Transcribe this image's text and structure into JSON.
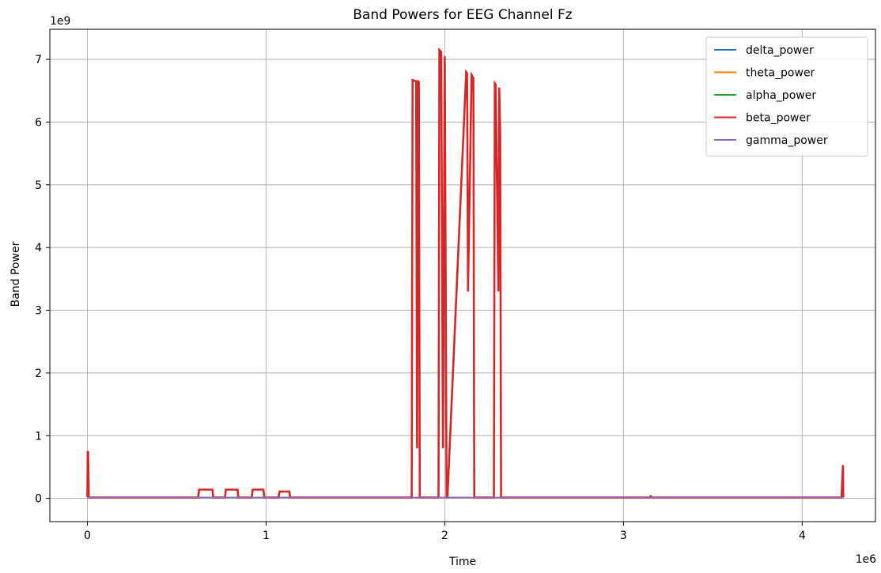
{
  "chart_data": {
    "type": "line",
    "title": "Band Powers for EEG Channel Fz",
    "xlabel": "Time",
    "ylabel": "Band Power",
    "x_offset_label": "1e6",
    "y_offset_label": "1e9",
    "xlim": [
      -210000,
      4410000
    ],
    "ylim": [
      -370000000,
      7480000000
    ],
    "x_ticks": [
      0,
      1000000,
      2000000,
      3000000,
      4000000
    ],
    "x_tick_labels": [
      "0",
      "1",
      "2",
      "3",
      "4"
    ],
    "y_ticks": [
      0,
      1000000000,
      2000000000,
      3000000000,
      4000000000,
      5000000000,
      6000000000,
      7000000000
    ],
    "y_tick_labels": [
      "0",
      "1",
      "2",
      "3",
      "4",
      "5",
      "6",
      "7"
    ],
    "grid": true,
    "legend_position": "top-right",
    "series": [
      {
        "name": "delta_power",
        "color": "#1f77b4",
        "x": [
          0,
          4230000
        ],
        "y": [
          15000000,
          15000000
        ]
      },
      {
        "name": "theta_power",
        "color": "#ff7f0e",
        "x": [
          0,
          4230000
        ],
        "y": [
          15000000,
          15000000
        ]
      },
      {
        "name": "alpha_power",
        "color": "#2ca02c",
        "x": [
          0,
          4230000
        ],
        "y": [
          15000000,
          15000000
        ]
      },
      {
        "name": "beta_power",
        "color": "#d62728",
        "x": [
          0,
          2000,
          4000,
          8000,
          620000,
          625000,
          700000,
          705000,
          770000,
          775000,
          840000,
          845000,
          920000,
          925000,
          985000,
          990000,
          1070000,
          1075000,
          1130000,
          1135000,
          1815000,
          1820000,
          1840000,
          1845000,
          1850000,
          1855000,
          1860000,
          1870000,
          1965000,
          1970000,
          1980000,
          1990000,
          2000000,
          2010000,
          2015000,
          2120000,
          2125000,
          2130000,
          2150000,
          2160000,
          2165000,
          2170000,
          2275000,
          2280000,
          2285000,
          2300000,
          2305000,
          2310000,
          2315000,
          3150000,
          3152000,
          3155000,
          4220000,
          4228000,
          4230000
        ],
        "y": [
          15000000,
          740000000,
          740000000,
          15000000,
          15000000,
          140000000,
          140000000,
          15000000,
          15000000,
          140000000,
          140000000,
          15000000,
          15000000,
          140000000,
          140000000,
          15000000,
          15000000,
          110000000,
          110000000,
          15000000,
          15000000,
          6670000000,
          6650000000,
          800000000,
          6650000000,
          6640000000,
          15000000,
          15000000,
          15000000,
          7150000000,
          7120000000,
          800000000,
          7050000000,
          15000000,
          15000000,
          6800000000,
          6780000000,
          3300000000,
          6750000000,
          6700000000,
          15000000,
          15000000,
          15000000,
          6620000000,
          6600000000,
          3300000000,
          6550000000,
          5800000000,
          15000000,
          15000000,
          50000000,
          15000000,
          15000000,
          530000000,
          15000000
        ]
      },
      {
        "name": "gamma_power",
        "color": "#9467bd",
        "x": [
          0,
          4230000
        ],
        "y": [
          15000000,
          15000000
        ]
      }
    ]
  }
}
